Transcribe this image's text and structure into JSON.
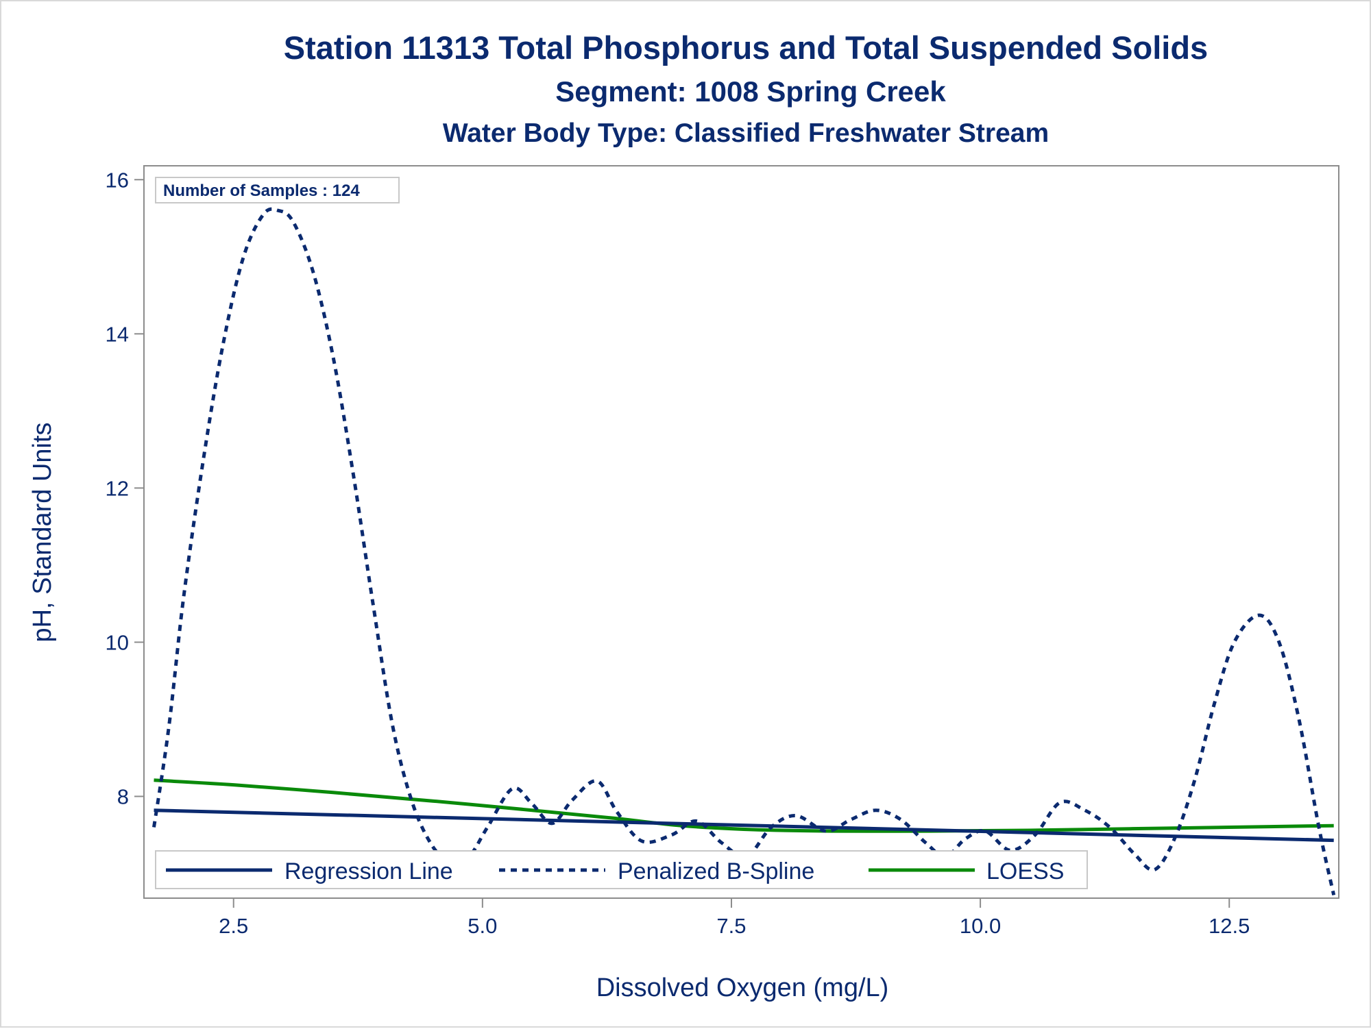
{
  "chart_data": {
    "type": "line",
    "title": "Station 11313  Total Phosphorus and Total Suspended Solids",
    "subtitle": "Segment: 1008  Spring Creek",
    "subtitle2": "Water Body Type: Classified Freshwater Stream",
    "xlabel": "Dissolved Oxygen (mg/L)",
    "ylabel": "pH, Standard Units",
    "xlim": [
      1.6,
      13.6
    ],
    "ylim": [
      6.68,
      16.18
    ],
    "xticks": [
      "2.5",
      "5.0",
      "7.5",
      "10.0",
      "12.5"
    ],
    "yticks": [
      "8",
      "10",
      "12",
      "14",
      "16"
    ],
    "grid": false,
    "legend_position": "bottom-inside",
    "annotation": "Number of Samples : 124",
    "colors": {
      "regression": "#0b2a6f",
      "spline": "#0b2a6f",
      "loess": "#0a8a0a",
      "axis": "#8c8c8c",
      "text": "#0b2a6f"
    },
    "series": [
      {
        "name": "Regression Line",
        "style": "solid",
        "x": [
          1.7,
          13.55
        ],
        "y": [
          7.82,
          7.43
        ]
      },
      {
        "name": "Penalized B-Spline",
        "style": "dashed",
        "x": [
          1.7,
          1.85,
          2.0,
          2.2,
          2.4,
          2.6,
          2.8,
          2.95,
          3.1,
          3.3,
          3.5,
          3.7,
          3.9,
          4.1,
          4.3,
          4.5,
          4.65,
          4.85,
          5.05,
          5.3,
          5.5,
          5.7,
          5.9,
          6.15,
          6.35,
          6.6,
          6.9,
          7.15,
          7.4,
          7.65,
          7.9,
          8.15,
          8.45,
          8.7,
          8.95,
          9.2,
          9.45,
          9.65,
          9.85,
          10.05,
          10.3,
          10.55,
          10.8,
          11.05,
          11.3,
          11.55,
          11.75,
          11.95,
          12.15,
          12.35,
          12.55,
          12.8,
          13.0,
          13.2,
          13.4,
          13.55
        ],
        "y": [
          7.6,
          8.9,
          10.6,
          12.4,
          13.9,
          15.0,
          15.55,
          15.6,
          15.45,
          14.8,
          13.7,
          12.2,
          10.5,
          8.9,
          7.9,
          7.35,
          7.2,
          7.2,
          7.6,
          8.1,
          7.9,
          7.65,
          7.95,
          8.2,
          7.8,
          7.42,
          7.5,
          7.68,
          7.4,
          7.22,
          7.6,
          7.75,
          7.55,
          7.7,
          7.82,
          7.7,
          7.4,
          7.22,
          7.45,
          7.55,
          7.3,
          7.5,
          7.92,
          7.82,
          7.6,
          7.25,
          7.05,
          7.45,
          8.2,
          9.2,
          10.0,
          10.35,
          10.0,
          9.0,
          7.6,
          6.72
        ]
      },
      {
        "name": "LOESS",
        "style": "solid",
        "x": [
          1.7,
          2.5,
          3.5,
          4.5,
          5.5,
          6.3,
          7.0,
          7.7,
          8.5,
          9.5,
          10.5,
          11.5,
          12.5,
          13.55
        ],
        "y": [
          8.21,
          8.15,
          8.05,
          7.94,
          7.82,
          7.72,
          7.62,
          7.57,
          7.55,
          7.55,
          7.56,
          7.58,
          7.6,
          7.62
        ]
      }
    ]
  }
}
